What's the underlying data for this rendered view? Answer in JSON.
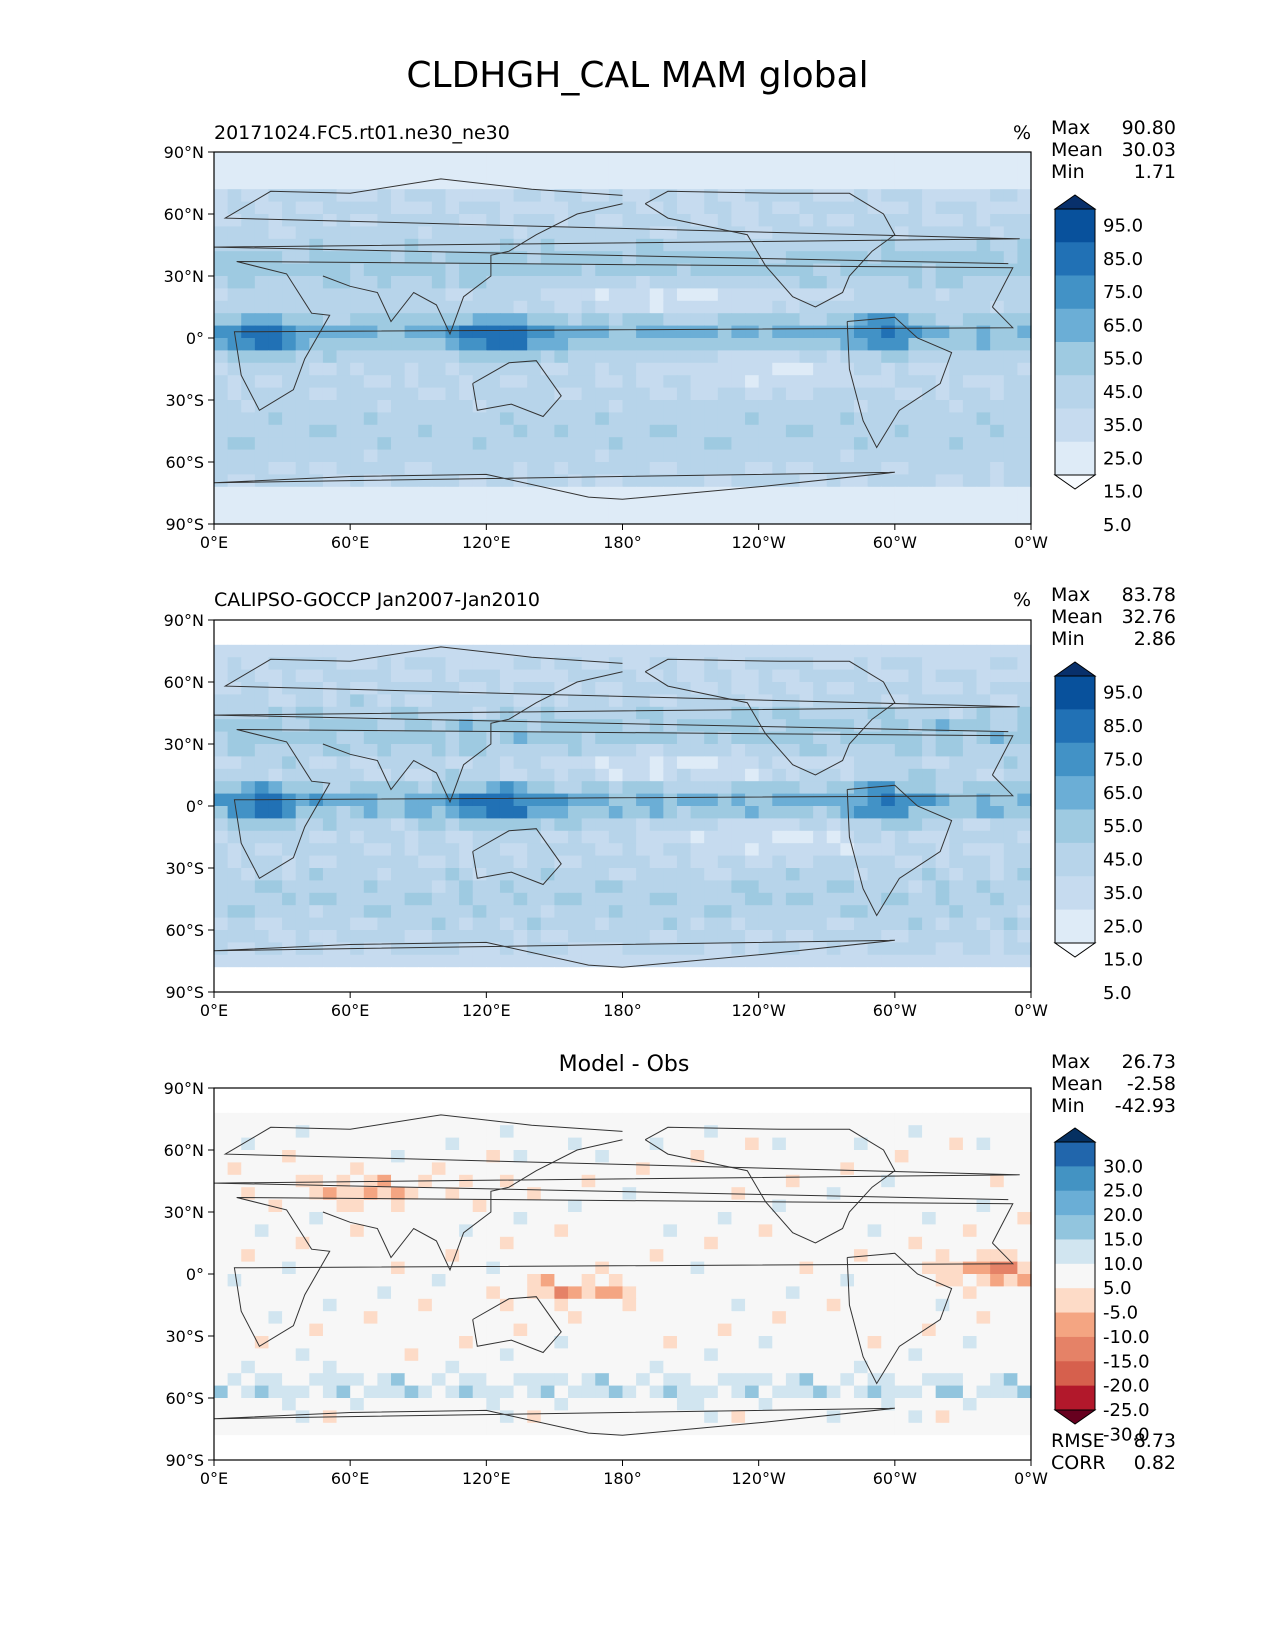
{
  "figure_title": "CLDHGH_CAL MAM global",
  "stat_labels": {
    "max": "Max",
    "mean": "Mean",
    "min": "Min"
  },
  "metric_labels": {
    "rmse": "RMSE",
    "corr": "CORR"
  },
  "colors": {
    "blues": [
      "#f7fbff",
      "#deebf7",
      "#c6dbef",
      "#b7d4ea",
      "#9ecae1",
      "#6baed6",
      "#4292c6",
      "#2171b5",
      "#08519c",
      "#08306b"
    ],
    "diverging": [
      "#67001f",
      "#b2182b",
      "#d6604d",
      "#e58267",
      "#f4a582",
      "#fddbc7",
      "#f7f7f7",
      "#d1e5f0",
      "#92c5de",
      "#6aaed6",
      "#4393c3",
      "#2166ac",
      "#053061"
    ],
    "coastline": "#333333"
  },
  "chart_data": [
    {
      "type": "heatmap",
      "title": "20171024.FC5.rt01.ne30_ne30",
      "units": "%",
      "x_ticks": [
        "0°E",
        "60°E",
        "120°E",
        "180°",
        "120°W",
        "60°W",
        "0°W"
      ],
      "y_ticks": [
        "90°N",
        "60°N",
        "30°N",
        "0°",
        "30°S",
        "60°S",
        "90°S"
      ],
      "xlim": [
        0,
        360
      ],
      "ylim": [
        -90,
        90
      ],
      "colorbar": {
        "levels": [
          "95.0",
          "85.0",
          "75.0",
          "65.0",
          "55.0",
          "45.0",
          "35.0",
          "25.0",
          "15.0",
          "5.0"
        ],
        "extend": "both"
      },
      "stats": {
        "max": "90.80",
        "mean": "30.03",
        "min": "1.71"
      }
    },
    {
      "type": "heatmap",
      "title": "CALIPSO-GOCCP Jan2007-Jan2010",
      "units": "%",
      "x_ticks": [
        "0°E",
        "60°E",
        "120°E",
        "180°",
        "120°W",
        "60°W",
        "0°W"
      ],
      "y_ticks": [
        "90°N",
        "60°N",
        "30°N",
        "0°",
        "30°S",
        "60°S",
        "90°S"
      ],
      "xlim": [
        0,
        360
      ],
      "ylim": [
        -90,
        90
      ],
      "colorbar": {
        "levels": [
          "95.0",
          "85.0",
          "75.0",
          "65.0",
          "55.0",
          "45.0",
          "35.0",
          "25.0",
          "15.0",
          "5.0"
        ],
        "extend": "both"
      },
      "stats": {
        "max": "83.78",
        "mean": "32.76",
        "min": "2.86"
      }
    },
    {
      "type": "heatmap",
      "title": "Model - Obs",
      "units": "",
      "x_ticks": [
        "0°E",
        "60°E",
        "120°E",
        "180°",
        "120°W",
        "60°W",
        "0°W"
      ],
      "y_ticks": [
        "90°N",
        "60°N",
        "30°N",
        "0°",
        "30°S",
        "60°S",
        "90°S"
      ],
      "xlim": [
        0,
        360
      ],
      "ylim": [
        -90,
        90
      ],
      "colorbar": {
        "levels": [
          "30.0",
          "25.0",
          "20.0",
          "15.0",
          "10.0",
          "5.0",
          "-5.0",
          "-10.0",
          "-15.0",
          "-20.0",
          "-25.0",
          "-30.0"
        ],
        "extend": "both"
      },
      "stats": {
        "max": "26.73",
        "mean": "-2.58",
        "min": "-42.93"
      },
      "metrics": {
        "rmse": "8.73",
        "corr": "0.82"
      }
    }
  ]
}
